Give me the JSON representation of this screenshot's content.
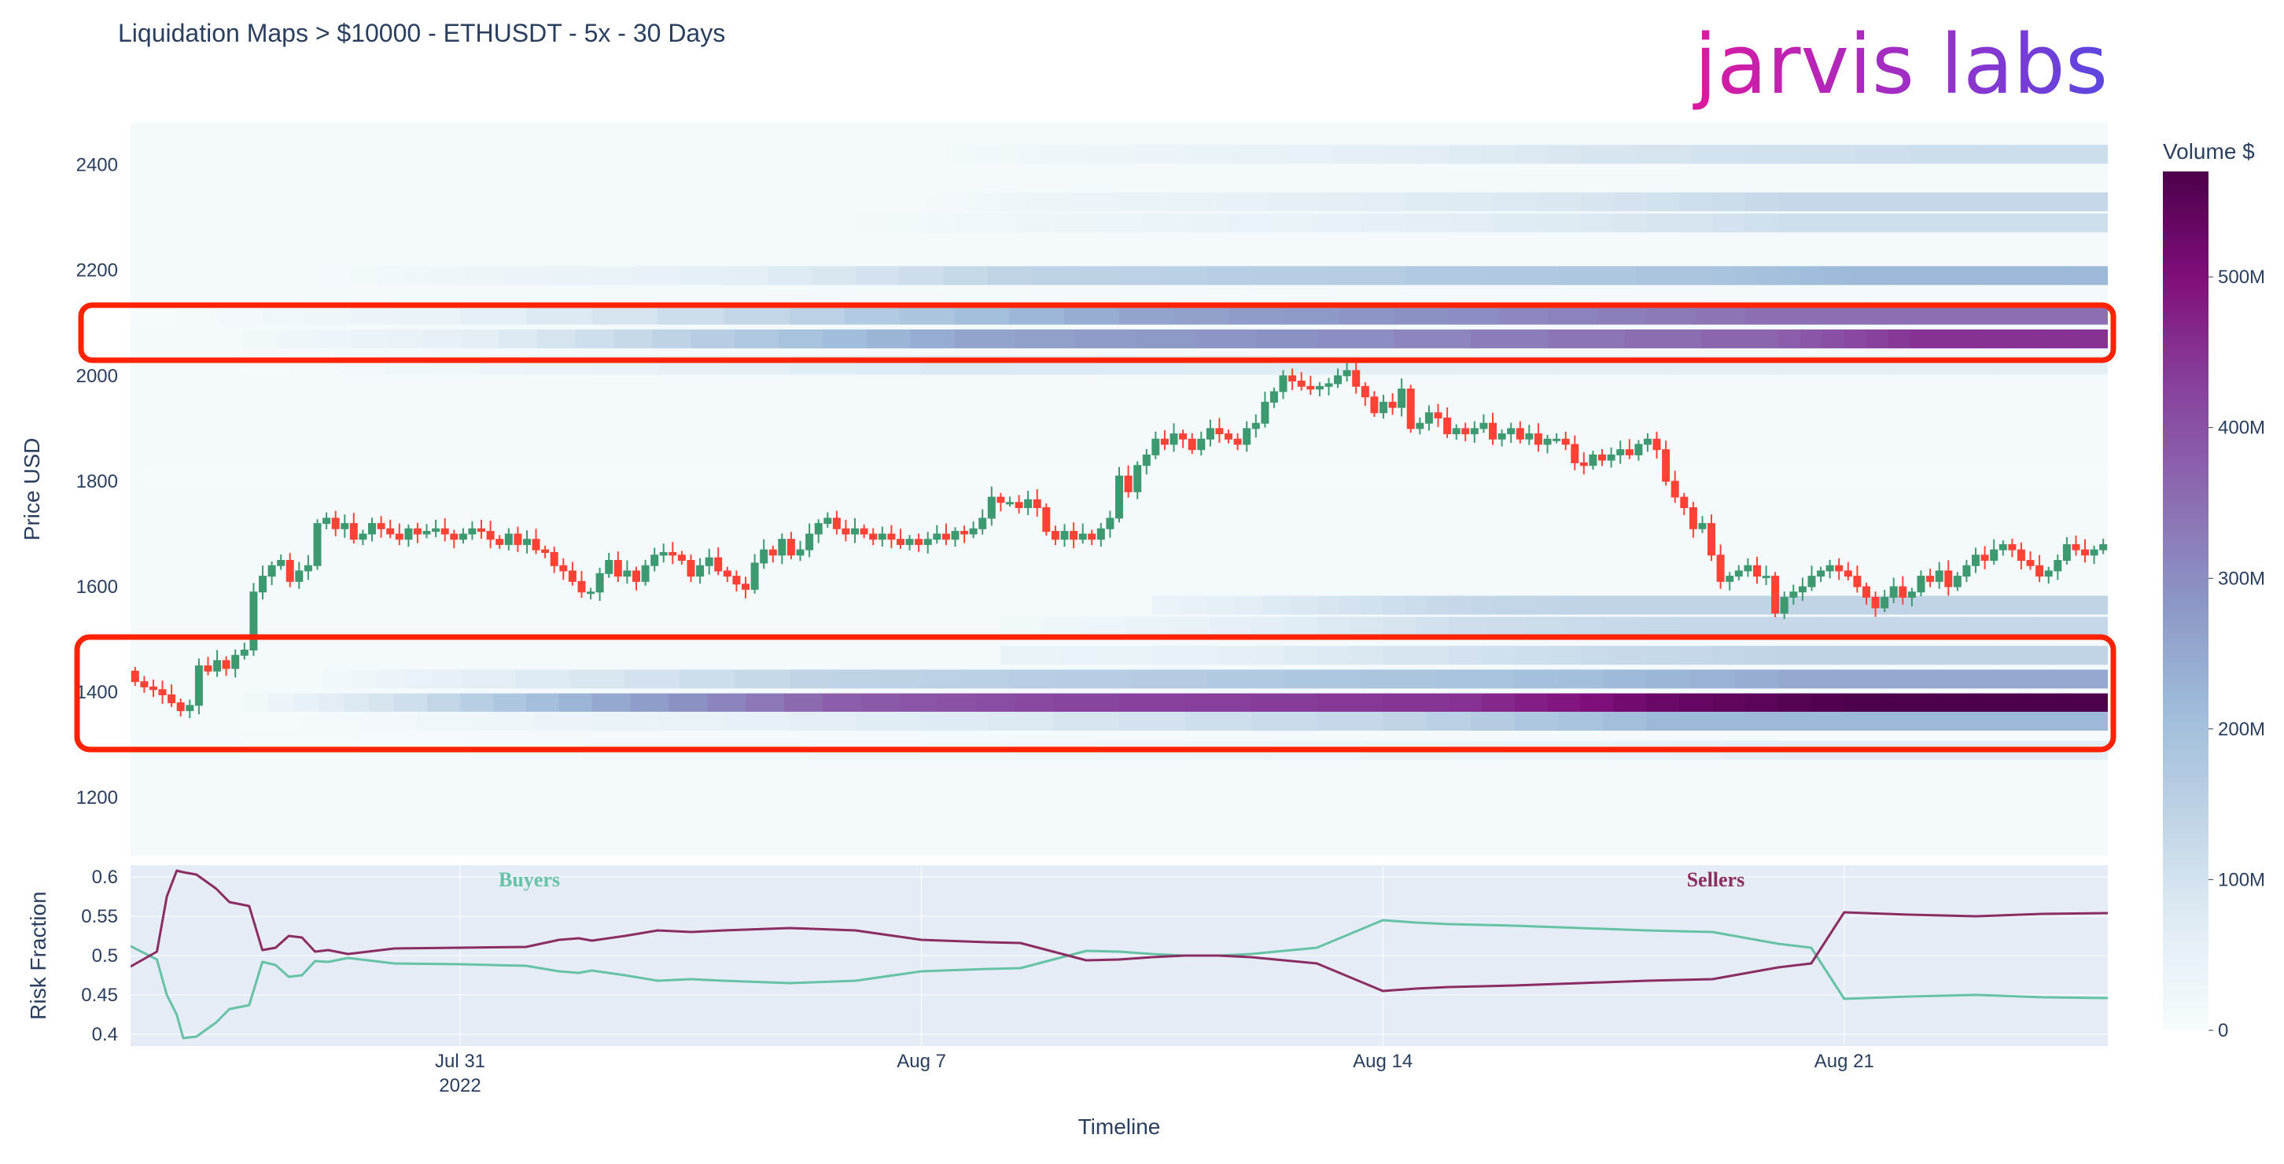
{
  "title": "Liquidation Maps > $10000 - ETHUSDT - 5x - 30 Days",
  "logo": {
    "text": "jarvis labs"
  },
  "chart_data": [
    {
      "type": "heatmap",
      "ylabel": "Price USD",
      "y_ticks": [
        "1200",
        "1400",
        "1600",
        "1800",
        "2000",
        "2200",
        "2400"
      ],
      "ylim": [
        1090,
        2480
      ],
      "colorbar": {
        "title": "Volume $",
        "ticks": [
          "0",
          "100M",
          "200M",
          "300M",
          "400M",
          "500M"
        ],
        "range": [
          0,
          570
        ],
        "colorscale": [
          "#f7fcfd",
          "#e0ecf4",
          "#bfd3e6",
          "#9ebcda",
          "#8c96c6",
          "#8c6bb1",
          "#88419d",
          "#810f7c",
          "#4d004b"
        ]
      },
      "liquidation_bands": [
        {
          "price": 2420,
          "start": 12.5,
          "levels": [
            [
              12.5,
              15
            ],
            [
              14.5,
              30
            ],
            [
              19,
              60
            ],
            [
              22,
              90
            ],
            [
              27,
              115
            ]
          ]
        },
        {
          "price": 2330,
          "start": 11.8,
          "levels": [
            [
              11.8,
              10
            ],
            [
              13.5,
              30
            ],
            [
              18,
              60
            ],
            [
              22,
              90
            ],
            [
              25,
              130
            ]
          ]
        },
        {
          "price": 2290,
          "start": 11.0,
          "levels": [
            [
              11.0,
              12
            ],
            [
              14,
              30
            ],
            [
              18,
              50
            ],
            [
              22,
              80
            ],
            [
              25,
              110
            ]
          ]
        },
        {
          "price": 2190,
          "start": 2.5,
          "levels": [
            [
              2.5,
              8
            ],
            [
              5,
              30
            ],
            [
              9,
              60
            ],
            [
              13,
              140
            ],
            [
              17,
              160
            ],
            [
              24,
              190
            ],
            [
              26,
              220
            ]
          ]
        },
        {
          "price": 2115,
          "start": 0,
          "levels": [
            [
              0,
              5
            ],
            [
              4,
              40
            ],
            [
              10,
              150
            ],
            [
              15,
              260
            ],
            [
              20,
              300
            ],
            [
              24.5,
              350
            ]
          ]
        },
        {
          "price": 2070,
          "start": 1.7,
          "levels": [
            [
              1.7,
              20
            ],
            [
              5,
              60
            ],
            [
              8.5,
              160
            ],
            [
              12.5,
              260
            ],
            [
              18,
              300
            ],
            [
              25,
              380
            ],
            [
              27,
              450
            ]
          ]
        },
        {
          "price": 2020,
          "start": 1.7,
          "levels": [
            [
              1.7,
              5
            ],
            [
              6,
              40
            ],
            [
              12,
              80
            ],
            [
              20,
              60
            ]
          ]
        },
        {
          "price": 1810,
          "start": 0,
          "levels": [
            [
              0,
              8
            ],
            [
              1,
              5
            ]
          ]
        },
        {
          "price": 1565,
          "start": 15.5,
          "levels": [
            [
              15.5,
              40
            ],
            [
              18,
              90
            ],
            [
              20,
              130
            ],
            [
              22,
              140
            ]
          ]
        },
        {
          "price": 1525,
          "start": 13.2,
          "levels": [
            [
              13.2,
              20
            ],
            [
              17,
              60
            ],
            [
              20,
              110
            ],
            [
              23.5,
              130
            ]
          ]
        },
        {
          "price": 1470,
          "start": 13.2,
          "levels": [
            [
              13.2,
              40
            ],
            [
              16,
              50
            ],
            [
              19,
              90
            ],
            [
              22,
              120
            ],
            [
              25,
              140
            ]
          ]
        },
        {
          "price": 1425,
          "start": 2.5,
          "levels": [
            [
              2.5,
              10
            ],
            [
              5,
              60
            ],
            [
              10,
              140
            ],
            [
              14,
              160
            ],
            [
              21,
              200
            ],
            [
              25,
              250
            ]
          ]
        },
        {
          "price": 1380,
          "start": 1.7,
          "levels": [
            [
              1.7,
              20
            ],
            [
              4,
              110
            ],
            [
              7,
              250
            ],
            [
              10.5,
              380
            ],
            [
              14,
              420
            ],
            [
              20,
              450
            ],
            [
              23,
              530
            ],
            [
              26,
              570
            ]
          ]
        },
        {
          "price": 1345,
          "start": 1.7,
          "levels": [
            [
              1.7,
              5
            ],
            [
              7,
              40
            ],
            [
              13,
              80
            ],
            [
              19,
              140
            ],
            [
              23,
              220
            ]
          ]
        },
        {
          "price": 1290,
          "start": 1.7,
          "levels": [
            [
              1.7,
              4
            ],
            [
              12,
              20
            ],
            [
              20,
              40
            ],
            [
              25,
              60
            ]
          ]
        }
      ]
    },
    {
      "type": "candlestick",
      "x_range": [
        0,
        30
      ],
      "up_color": "#3d9970",
      "down_color": "#ff4136",
      "close": [
        1420,
        1410,
        1405,
        1395,
        1380,
        1365,
        1375,
        1450,
        1440,
        1460,
        1445,
        1470,
        1480,
        1590,
        1620,
        1640,
        1650,
        1610,
        1630,
        1640,
        1720,
        1730,
        1710,
        1720,
        1690,
        1700,
        1720,
        1710,
        1700,
        1690,
        1710,
        1700,
        1705,
        1710,
        1700,
        1690,
        1700,
        1710,
        1705,
        1690,
        1680,
        1700,
        1680,
        1690,
        1670,
        1665,
        1640,
        1630,
        1610,
        1590,
        1590,
        1625,
        1650,
        1620,
        1630,
        1610,
        1640,
        1660,
        1665,
        1660,
        1650,
        1620,
        1640,
        1655,
        1630,
        1620,
        1605,
        1595,
        1645,
        1670,
        1660,
        1690,
        1660,
        1670,
        1700,
        1720,
        1730,
        1710,
        1700,
        1710,
        1700,
        1690,
        1700,
        1690,
        1680,
        1690,
        1680,
        1690,
        1700,
        1690,
        1705,
        1700,
        1710,
        1730,
        1770,
        1760,
        1760,
        1750,
        1765,
        1750,
        1705,
        1690,
        1705,
        1690,
        1700,
        1690,
        1710,
        1730,
        1810,
        1780,
        1830,
        1850,
        1880,
        1870,
        1890,
        1880,
        1860,
        1880,
        1900,
        1890,
        1880,
        1870,
        1900,
        1910,
        1950,
        1970,
        2000,
        1990,
        1980,
        1975,
        1980,
        1985,
        2000,
        2010,
        1980,
        1960,
        1930,
        1950,
        1940,
        1975,
        1900,
        1910,
        1930,
        1920,
        1890,
        1900,
        1890,
        1900,
        1910,
        1880,
        1890,
        1900,
        1880,
        1890,
        1870,
        1880,
        1880,
        1870,
        1835,
        1830,
        1850,
        1840,
        1850,
        1860,
        1850,
        1870,
        1880,
        1860,
        1800,
        1770,
        1750,
        1710,
        1720,
        1660,
        1610,
        1620,
        1630,
        1640,
        1620,
        1620,
        1550,
        1580,
        1590,
        1600,
        1620,
        1630,
        1640,
        1630,
        1620,
        1600,
        1580,
        1560,
        1580,
        1600,
        1580,
        1590,
        1620,
        1610,
        1630,
        1600,
        1620,
        1640,
        1660,
        1650,
        1670,
        1680,
        1670,
        1650,
        1640,
        1620,
        1630,
        1650,
        1680,
        1670,
        1660,
        1670,
        1680
      ]
    },
    {
      "type": "line",
      "xlabel": "Timeline",
      "ylabel": "Risk Fraction",
      "x_ticks": [
        "Jul 31",
        "Aug 7",
        "Aug 14",
        "Aug 21"
      ],
      "x_ticks_positions": [
        5,
        12,
        19,
        26
      ],
      "x_sublabel": "2022",
      "y_ticks": [
        "0.4",
        "0.45",
        "0.5",
        "0.55",
        "0.6"
      ],
      "ylim": [
        0.385,
        0.615
      ],
      "annotations": [
        {
          "text": "Buyers",
          "x": 6.05
        },
        {
          "text": "Sellers",
          "x": 24.05
        }
      ],
      "series": [
        {
          "color": "#66c2a5",
          "x": [
            0,
            0.4,
            0.55,
            0.7,
            0.8,
            1.0,
            1.3,
            1.5,
            1.8,
            2.0,
            2.2,
            2.4,
            2.6,
            2.8,
            3.0,
            3.3,
            4.0,
            5.0,
            6.0,
            6.5,
            6.8,
            7.0,
            7.5,
            8.0,
            8.5,
            9.0,
            10.0,
            11.0,
            12.0,
            13.0,
            13.5,
            14.0,
            14.5,
            15.0,
            15.5,
            16.0,
            16.5,
            17.0,
            18.0,
            19.0,
            19.5,
            20.0,
            21.0,
            22.0,
            23.0,
            24.0,
            25.0,
            25.5,
            26.0,
            27.0,
            28.0,
            29.0,
            30.0
          ],
          "y": [
            0.512,
            0.495,
            0.45,
            0.425,
            0.395,
            0.397,
            0.415,
            0.432,
            0.437,
            0.492,
            0.488,
            0.473,
            0.475,
            0.493,
            0.492,
            0.497,
            0.49,
            0.489,
            0.487,
            0.48,
            0.478,
            0.481,
            0.475,
            0.468,
            0.47,
            0.468,
            0.465,
            0.468,
            0.48,
            0.483,
            0.484,
            0.495,
            0.506,
            0.505,
            0.502,
            0.5,
            0.5,
            0.502,
            0.51,
            0.545,
            0.542,
            0.54,
            0.538,
            0.535,
            0.532,
            0.53,
            0.515,
            0.51,
            0.445,
            0.448,
            0.45,
            0.447,
            0.446
          ]
        },
        {
          "color": "#8b2d63",
          "x": [
            0,
            0.4,
            0.55,
            0.7,
            0.8,
            1.0,
            1.3,
            1.5,
            1.8,
            2.0,
            2.2,
            2.4,
            2.6,
            2.8,
            3.0,
            3.3,
            4.0,
            5.0,
            6.0,
            6.5,
            6.8,
            7.0,
            7.5,
            8.0,
            8.5,
            9.0,
            10.0,
            11.0,
            12.0,
            13.0,
            13.5,
            14.0,
            14.5,
            15.0,
            15.5,
            16.0,
            16.5,
            17.0,
            18.0,
            19.0,
            19.5,
            20.0,
            21.0,
            22.0,
            23.0,
            24.0,
            25.0,
            25.5,
            26.0,
            27.0,
            28.0,
            29.0,
            30.0
          ],
          "y": [
            0.486,
            0.505,
            0.575,
            0.608,
            0.606,
            0.603,
            0.585,
            0.568,
            0.563,
            0.507,
            0.51,
            0.525,
            0.523,
            0.505,
            0.507,
            0.502,
            0.509,
            0.51,
            0.511,
            0.52,
            0.522,
            0.519,
            0.525,
            0.532,
            0.53,
            0.532,
            0.535,
            0.532,
            0.52,
            0.517,
            0.516,
            0.505,
            0.494,
            0.495,
            0.498,
            0.5,
            0.5,
            0.498,
            0.49,
            0.455,
            0.458,
            0.46,
            0.462,
            0.465,
            0.468,
            0.47,
            0.485,
            0.49,
            0.555,
            0.552,
            0.55,
            0.553,
            0.554
          ]
        }
      ]
    }
  ]
}
